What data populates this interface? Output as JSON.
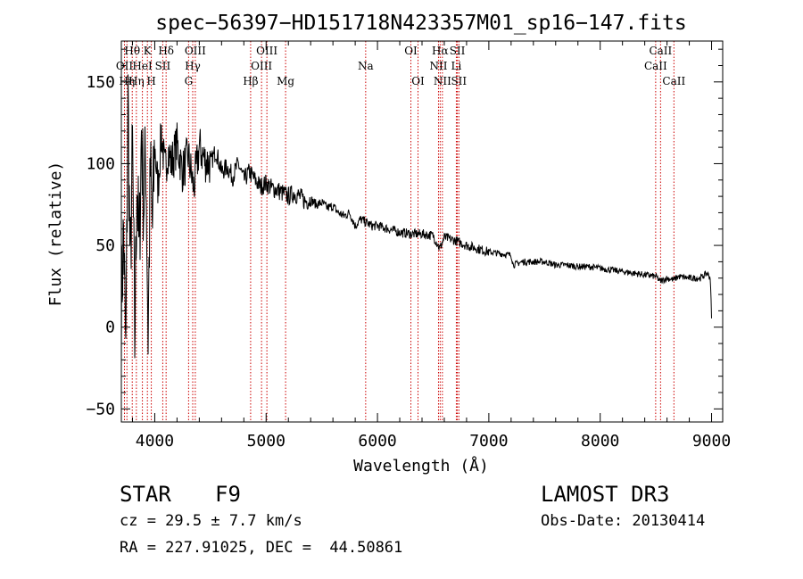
{
  "chart_data": {
    "type": "line",
    "title": "spec−56397−HD151718N423357M01_sp16−147.fits",
    "xlabel": "Wavelength (Å)",
    "ylabel": "Flux (relative)",
    "xlim": [
      3700,
      9100
    ],
    "ylim": [
      -58,
      175
    ],
    "xticks": [
      4000,
      5000,
      6000,
      7000,
      8000,
      9000
    ],
    "xtick_labels": [
      "4000",
      "5000",
      "6000",
      "7000",
      "8000",
      "9000"
    ],
    "yticks": [
      -50,
      0,
      50,
      100,
      150
    ],
    "ytick_labels": [
      "−50",
      "0",
      "50",
      "100",
      "150"
    ],
    "series": [
      {
        "name": "flux",
        "x": [
          3700,
          3720,
          3740,
          3760,
          3780,
          3800,
          3820,
          3840,
          3860,
          3880,
          3900,
          3920,
          3940,
          3960,
          3980,
          4000,
          4030,
          4060,
          4090,
          4120,
          4150,
          4200,
          4250,
          4300,
          4350,
          4400,
          4450,
          4500,
          4550,
          4600,
          4650,
          4700,
          4750,
          4800,
          4850,
          4900,
          4950,
          5000,
          5050,
          5100,
          5150,
          5200,
          5250,
          5300,
          5350,
          5400,
          5450,
          5500,
          5550,
          5600,
          5650,
          5700,
          5750,
          5800,
          5850,
          5900,
          5950,
          6000,
          6100,
          6200,
          6300,
          6400,
          6500,
          6560,
          6600,
          6700,
          6800,
          6900,
          7000,
          7100,
          7200,
          7220,
          7300,
          7400,
          7500,
          7600,
          7700,
          7800,
          7900,
          8000,
          8100,
          8200,
          8300,
          8400,
          8500,
          8540,
          8600,
          8660,
          8700,
          8800,
          8900,
          8960,
          8990,
          9000
        ],
        "y": [
          10,
          60,
          -20,
          140,
          30,
          110,
          -10,
          95,
          40,
          120,
          75,
          105,
          -5,
          95,
          60,
          110,
          85,
          120,
          95,
          108,
          100,
          112,
          95,
          105,
          85,
          110,
          102,
          100,
          108,
          95,
          98,
          92,
          100,
          90,
          95,
          90,
          86,
          88,
          85,
          84,
          82,
          80,
          82,
          80,
          77,
          78,
          75,
          76,
          73,
          74,
          70,
          68,
          70,
          62,
          66,
          64,
          62,
          62,
          60,
          58,
          57,
          57,
          56,
          48,
          55,
          53,
          50,
          48,
          46,
          45,
          44,
          38,
          40,
          40,
          40,
          38,
          38,
          37,
          37,
          36,
          35,
          34,
          33,
          32,
          31,
          28,
          30,
          29,
          31,
          30,
          30,
          33,
          30,
          5
        ]
      }
    ],
    "lines": [
      {
        "wl": 3728,
        "label": "OII",
        "row": 2
      },
      {
        "wl": 3750,
        "label": "Hη",
        "row": 3
      },
      {
        "wl": 3798,
        "label": "Hθ",
        "row": 1
      },
      {
        "wl": 3835,
        "label": "Hη",
        "row": 3
      },
      {
        "wl": 3889,
        "label": "HeI",
        "row": 2
      },
      {
        "wl": 3934,
        "label": "K",
        "row": 1
      },
      {
        "wl": 3969,
        "label": "H",
        "row": 3
      },
      {
        "wl": 4072,
        "label": "SII",
        "row": 2
      },
      {
        "wl": 4102,
        "label": "Hδ",
        "row": 1
      },
      {
        "wl": 4304,
        "label": "G",
        "row": 3
      },
      {
        "wl": 4341,
        "label": "Hγ",
        "row": 2
      },
      {
        "wl": 4364,
        "label": "OIII",
        "row": 1
      },
      {
        "wl": 4861,
        "label": "Hβ",
        "row": 3
      },
      {
        "wl": 4959,
        "label": "OIII",
        "row": 2
      },
      {
        "wl": 5007,
        "label": "OIII",
        "row": 1
      },
      {
        "wl": 5175,
        "label": "Mg",
        "row": 3
      },
      {
        "wl": 5894,
        "label": "Na",
        "row": 2
      },
      {
        "wl": 6300,
        "label": "OI",
        "row": 1
      },
      {
        "wl": 6364,
        "label": "OI",
        "row": 3
      },
      {
        "wl": 6548,
        "label": "NII",
        "row": 2
      },
      {
        "wl": 6563,
        "label": "Hα",
        "row": 1
      },
      {
        "wl": 6583,
        "label": "NII",
        "row": 3
      },
      {
        "wl": 6708,
        "label": "Li",
        "row": 2
      },
      {
        "wl": 6717,
        "label": "SII",
        "row": 1
      },
      {
        "wl": 6731,
        "label": "SII",
        "row": 3
      },
      {
        "wl": 8498,
        "label": "CaII",
        "row": 2
      },
      {
        "wl": 8542,
        "label": "CaII",
        "row": 1
      },
      {
        "wl": 8662,
        "label": "CaII",
        "row": 3
      }
    ],
    "colors": {
      "spectrum": "#000000",
      "line_marker": "#cc0000",
      "axes": "#000000"
    }
  },
  "info": {
    "object_class": "STAR",
    "subclass": "F9",
    "redshift": "cz = 29.5 ± 7.7 km/s",
    "coords": "RA = 227.91025, DEC =  44.50861",
    "survey": "LAMOST DR3",
    "obs_date": "Obs-Date: 20130414"
  }
}
